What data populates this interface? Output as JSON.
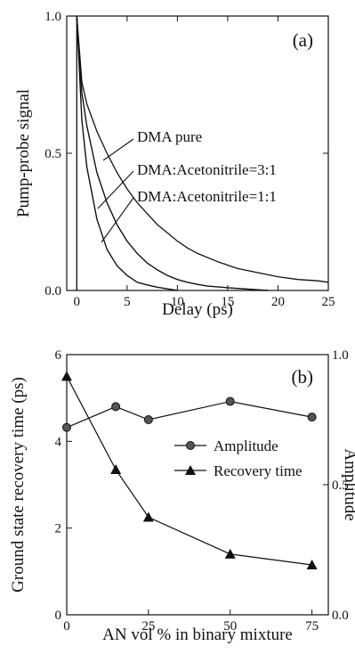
{
  "chart_data": [
    {
      "type": "line",
      "panel_label": "(a)",
      "xlabel": "Delay (ps)",
      "ylabel": "Pump-probe signal",
      "xlim": [
        -1,
        25
      ],
      "ylim": [
        0,
        1.0
      ],
      "xticks": [
        "0",
        "5",
        "10",
        "15",
        "20",
        "25"
      ],
      "yticks": [
        "0.0",
        "0.5",
        "1.0"
      ],
      "series": [
        {
          "name": "DMA pure",
          "x": [
            0,
            0.5,
            1,
            2,
            3,
            4,
            5,
            6,
            7,
            8,
            9,
            10,
            11,
            12,
            14,
            16,
            18,
            20,
            22,
            24,
            25
          ],
          "y": [
            1.0,
            0.76,
            0.68,
            0.58,
            0.5,
            0.43,
            0.37,
            0.32,
            0.28,
            0.24,
            0.21,
            0.18,
            0.155,
            0.135,
            0.105,
            0.08,
            0.065,
            0.05,
            0.04,
            0.035,
            0.03
          ]
        },
        {
          "name": "DMA:Acetonitrile=3:1",
          "x": [
            0,
            0.5,
            1,
            2,
            3,
            4,
            5,
            6,
            7,
            8,
            9,
            10,
            11,
            12,
            13,
            15,
            17,
            19
          ],
          "y": [
            1.0,
            0.72,
            0.6,
            0.43,
            0.32,
            0.24,
            0.18,
            0.135,
            0.1,
            0.075,
            0.055,
            0.04,
            0.03,
            0.022,
            0.016,
            0.01,
            0.005,
            0.0
          ]
        },
        {
          "name": "DMA:Acetonitrile=1:1",
          "x": [
            0,
            0.5,
            1,
            2,
            3,
            4,
            5,
            6,
            7,
            8,
            9,
            10
          ],
          "y": [
            1.0,
            0.62,
            0.45,
            0.26,
            0.15,
            0.09,
            0.055,
            0.03,
            0.02,
            0.012,
            0.006,
            0.0
          ]
        }
      ],
      "annotations": [
        "DMA pure",
        "DMA:Acetonitrile=3:1",
        "DMA:Acetonitrile=1:1"
      ]
    },
    {
      "type": "line",
      "panel_label": "(b)",
      "xlabel": "AN vol % in binary mixture",
      "ylabel_left": "Ground state recovery time (ps)",
      "ylabel_right": "Amplitude",
      "xlim": [
        0,
        80
      ],
      "ylim_left": [
        0,
        6
      ],
      "ylim_right": [
        0,
        1.0
      ],
      "xticks": [
        "0",
        "25",
        "50",
        "75"
      ],
      "yticks_left": [
        "0",
        "2",
        "4",
        "6"
      ],
      "yticks_right": [
        "0.0",
        "0.5",
        "1.0"
      ],
      "series": [
        {
          "name": "Amplitude",
          "axis": "right",
          "marker": "circle",
          "x": [
            0,
            15,
            25,
            50,
            75
          ],
          "y": [
            0.72,
            0.8,
            0.75,
            0.82,
            0.76
          ]
        },
        {
          "name": "Recovery time",
          "axis": "left",
          "marker": "triangle",
          "x": [
            0,
            15,
            25,
            50,
            75
          ],
          "y": [
            5.5,
            3.35,
            2.25,
            1.4,
            1.15
          ]
        }
      ],
      "legend": {
        "position": "center-right",
        "entries": [
          "Amplitude",
          "Recovery time"
        ]
      }
    }
  ]
}
